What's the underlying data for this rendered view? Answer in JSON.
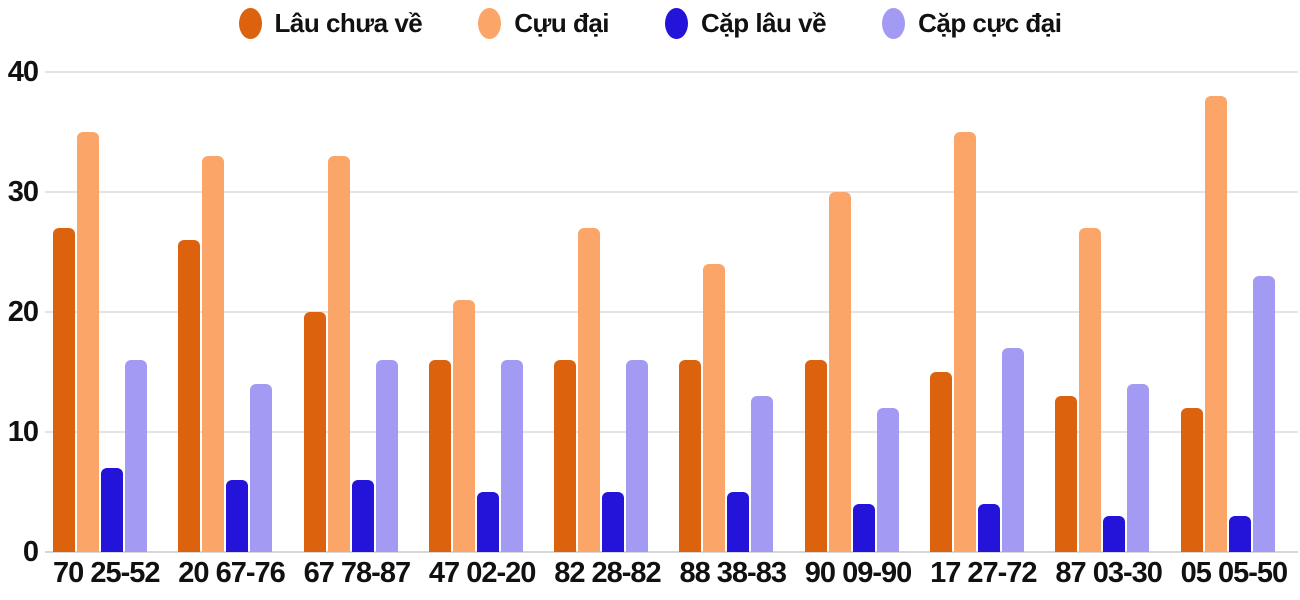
{
  "chart_data": {
    "type": "bar",
    "title": "",
    "xlabel": "",
    "ylabel": "",
    "ylim": [
      0,
      40
    ],
    "yticks": [
      0,
      10,
      20,
      30,
      40
    ],
    "grid": true,
    "legend_position": "top",
    "background_color": "#ffffff",
    "gridline_color": "#e4e4e4",
    "categories": [
      "70 25-52",
      "20 67-76",
      "67 78-87",
      "47 02-20",
      "82 28-82",
      "88 38-83",
      "90 09-90",
      "17 27-72",
      "87 03-30",
      "05 05-50"
    ],
    "series": [
      {
        "name": "Lâu chưa về",
        "color": "#dc620d",
        "values": [
          27,
          26,
          20,
          16,
          16,
          16,
          16,
          15,
          13,
          12
        ]
      },
      {
        "name": "Cựu đại",
        "color": "#fca569",
        "values": [
          35,
          33,
          33,
          21,
          27,
          24,
          30,
          35,
          27,
          38
        ]
      },
      {
        "name": "Cặp lâu về",
        "color": "#2413d9",
        "values": [
          7,
          6,
          6,
          5,
          5,
          5,
          4,
          4,
          3,
          3
        ]
      },
      {
        "name": "Cặp cực đại",
        "color": "#a39af3",
        "values": [
          16,
          14,
          16,
          16,
          16,
          13,
          12,
          17,
          14,
          23
        ]
      }
    ]
  }
}
